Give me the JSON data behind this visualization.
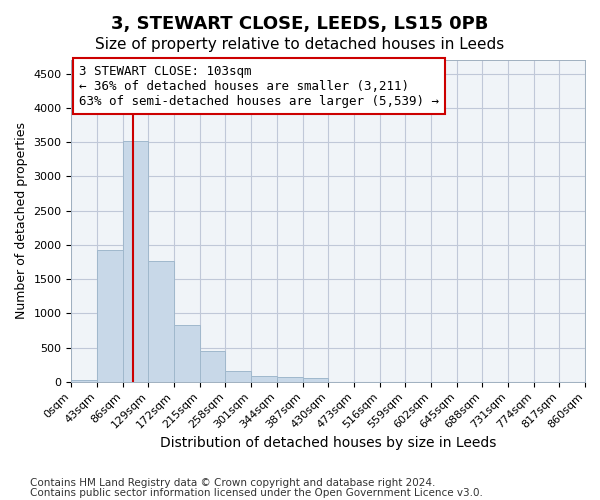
{
  "title_line1": "3, STEWART CLOSE, LEEDS, LS15 0PB",
  "title_line2": "Size of property relative to detached houses in Leeds",
  "xlabel": "Distribution of detached houses by size in Leeds",
  "ylabel": "Number of detached properties",
  "bar_color": "#c8d8e8",
  "bar_edge_color": "#a0b8cc",
  "grid_color": "#c0c8d8",
  "bg_color": "#f0f4f8",
  "red_line_color": "#cc0000",
  "annotation_text": "3 STEWART CLOSE: 103sqm\n← 36% of detached houses are smaller (3,211)\n63% of semi-detached houses are larger (5,539) →",
  "footnote1": "Contains HM Land Registry data © Crown copyright and database right 2024.",
  "footnote2": "Contains public sector information licensed under the Open Government Licence v3.0.",
  "bin_labels": [
    "0sqm",
    "43sqm",
    "86sqm",
    "129sqm",
    "172sqm",
    "215sqm",
    "258sqm",
    "301sqm",
    "344sqm",
    "387sqm",
    "430sqm",
    "473sqm",
    "516sqm",
    "559sqm",
    "602sqm",
    "645sqm",
    "688sqm",
    "731sqm",
    "774sqm",
    "817sqm",
    "860sqm"
  ],
  "bar_heights": [
    30,
    1920,
    3520,
    1760,
    830,
    450,
    155,
    90,
    65,
    50,
    0,
    0,
    0,
    0,
    0,
    0,
    0,
    0,
    0,
    0
  ],
  "ylim": [
    0,
    4700
  ],
  "yticks": [
    0,
    500,
    1000,
    1500,
    2000,
    2500,
    3000,
    3500,
    4000,
    4500
  ],
  "property_size_sqm": 103,
  "title1_fontsize": 13,
  "title2_fontsize": 11,
  "xlabel_fontsize": 10,
  "ylabel_fontsize": 9,
  "tick_fontsize": 8,
  "annotation_fontsize": 9,
  "footnote_fontsize": 7.5
}
